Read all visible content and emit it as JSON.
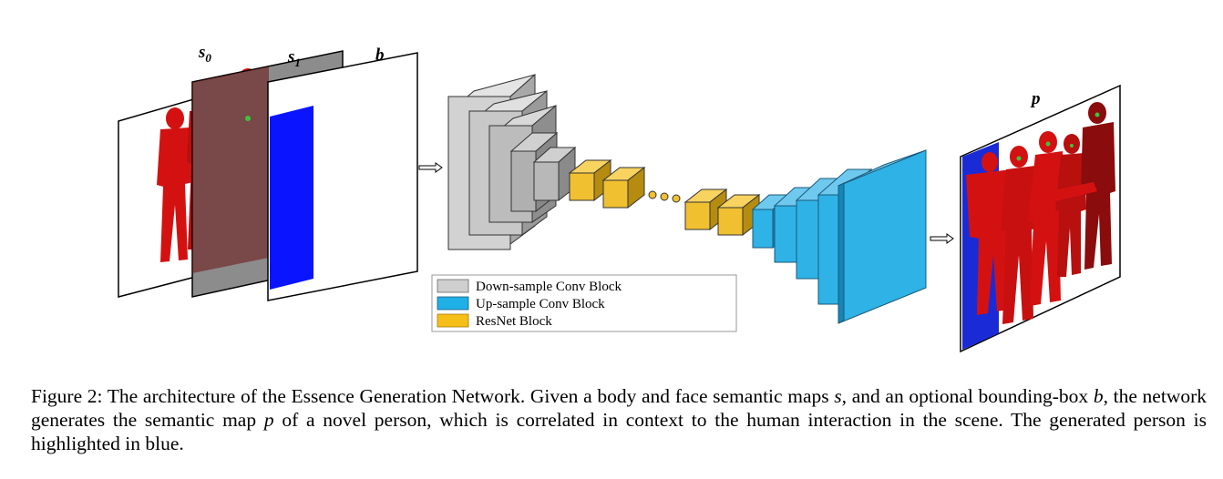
{
  "labels": {
    "s0": "s",
    "s0_sub": "0",
    "s1": "s",
    "s1_sub": "1",
    "b": "b",
    "p": "p"
  },
  "legend": {
    "items": [
      {
        "label": "Down-sample Conv Block",
        "color": "#cfcfcf"
      },
      {
        "label": "Up-sample Conv Block",
        "color": "#1fb0e8"
      },
      {
        "label": "ResNet Block",
        "color": "#f5bf17"
      }
    ]
  },
  "colors": {
    "semantic_red": "#d41111",
    "semantic_dark_red": "#7a0c0c",
    "bbox_blue": "#0a14ff",
    "highlight_blue": "#1a2bd6",
    "face_green": "#3ec23e"
  },
  "caption": {
    "t1": "Figure 2: The architecture of the Essence Generation Network. Given a body and face semantic maps ",
    "v1": "s",
    "t2": ", and an optional bounding-box ",
    "v2": "b",
    "t3": ", the network generates the semantic map ",
    "v3": "p",
    "t4": " of a novel person, which is correlated in context to the human interaction in the scene. The generated person is highlighted in blue."
  }
}
